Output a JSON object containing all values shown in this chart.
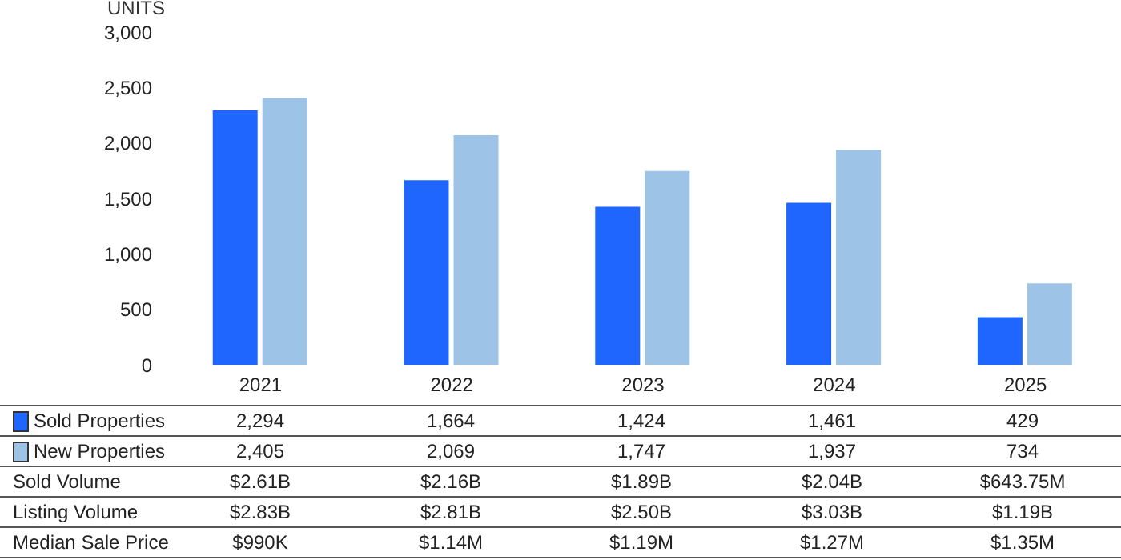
{
  "chart_data": {
    "type": "bar",
    "ylabel": "UNITS",
    "categories": [
      "2021",
      "2022",
      "2023",
      "2024",
      "2025"
    ],
    "series": [
      {
        "name": "Sold Properties",
        "color": "#1f66ff",
        "values": [
          2294,
          1664,
          1424,
          1461,
          429
        ],
        "value_labels": [
          "2,294",
          "1,664",
          "1,424",
          "1,461",
          "429"
        ]
      },
      {
        "name": "New Properties",
        "color": "#9dc3e6",
        "values": [
          2405,
          2069,
          1747,
          1937,
          734
        ],
        "value_labels": [
          "2,405",
          "2,069",
          "1,747",
          "1,937",
          "734"
        ]
      }
    ],
    "ylim": [
      0,
      3000
    ],
    "yticks": [
      {
        "value": 0,
        "label": "0"
      },
      {
        "value": 500,
        "label": "500"
      },
      {
        "value": 1000,
        "label": "1,000"
      },
      {
        "value": 1500,
        "label": "1,500"
      },
      {
        "value": 2000,
        "label": "2,000"
      },
      {
        "value": 2500,
        "label": "2,500"
      },
      {
        "value": 3000,
        "label": "3,000"
      }
    ],
    "grid": false,
    "legend": "bottom",
    "annotations": [
      "Sold Volume",
      "$2.61B",
      "$2.16B",
      "$1.89B",
      "$2.04B",
      "$643.75M",
      "Listing Volume",
      "$2.83B",
      "$2.81B",
      "$2.50B",
      "$3.03B",
      "$1.19B",
      "Median Sale Price",
      "$990K",
      "$1.14M",
      "$1.19M",
      "$1.27M",
      "$1.35M"
    ]
  }
}
